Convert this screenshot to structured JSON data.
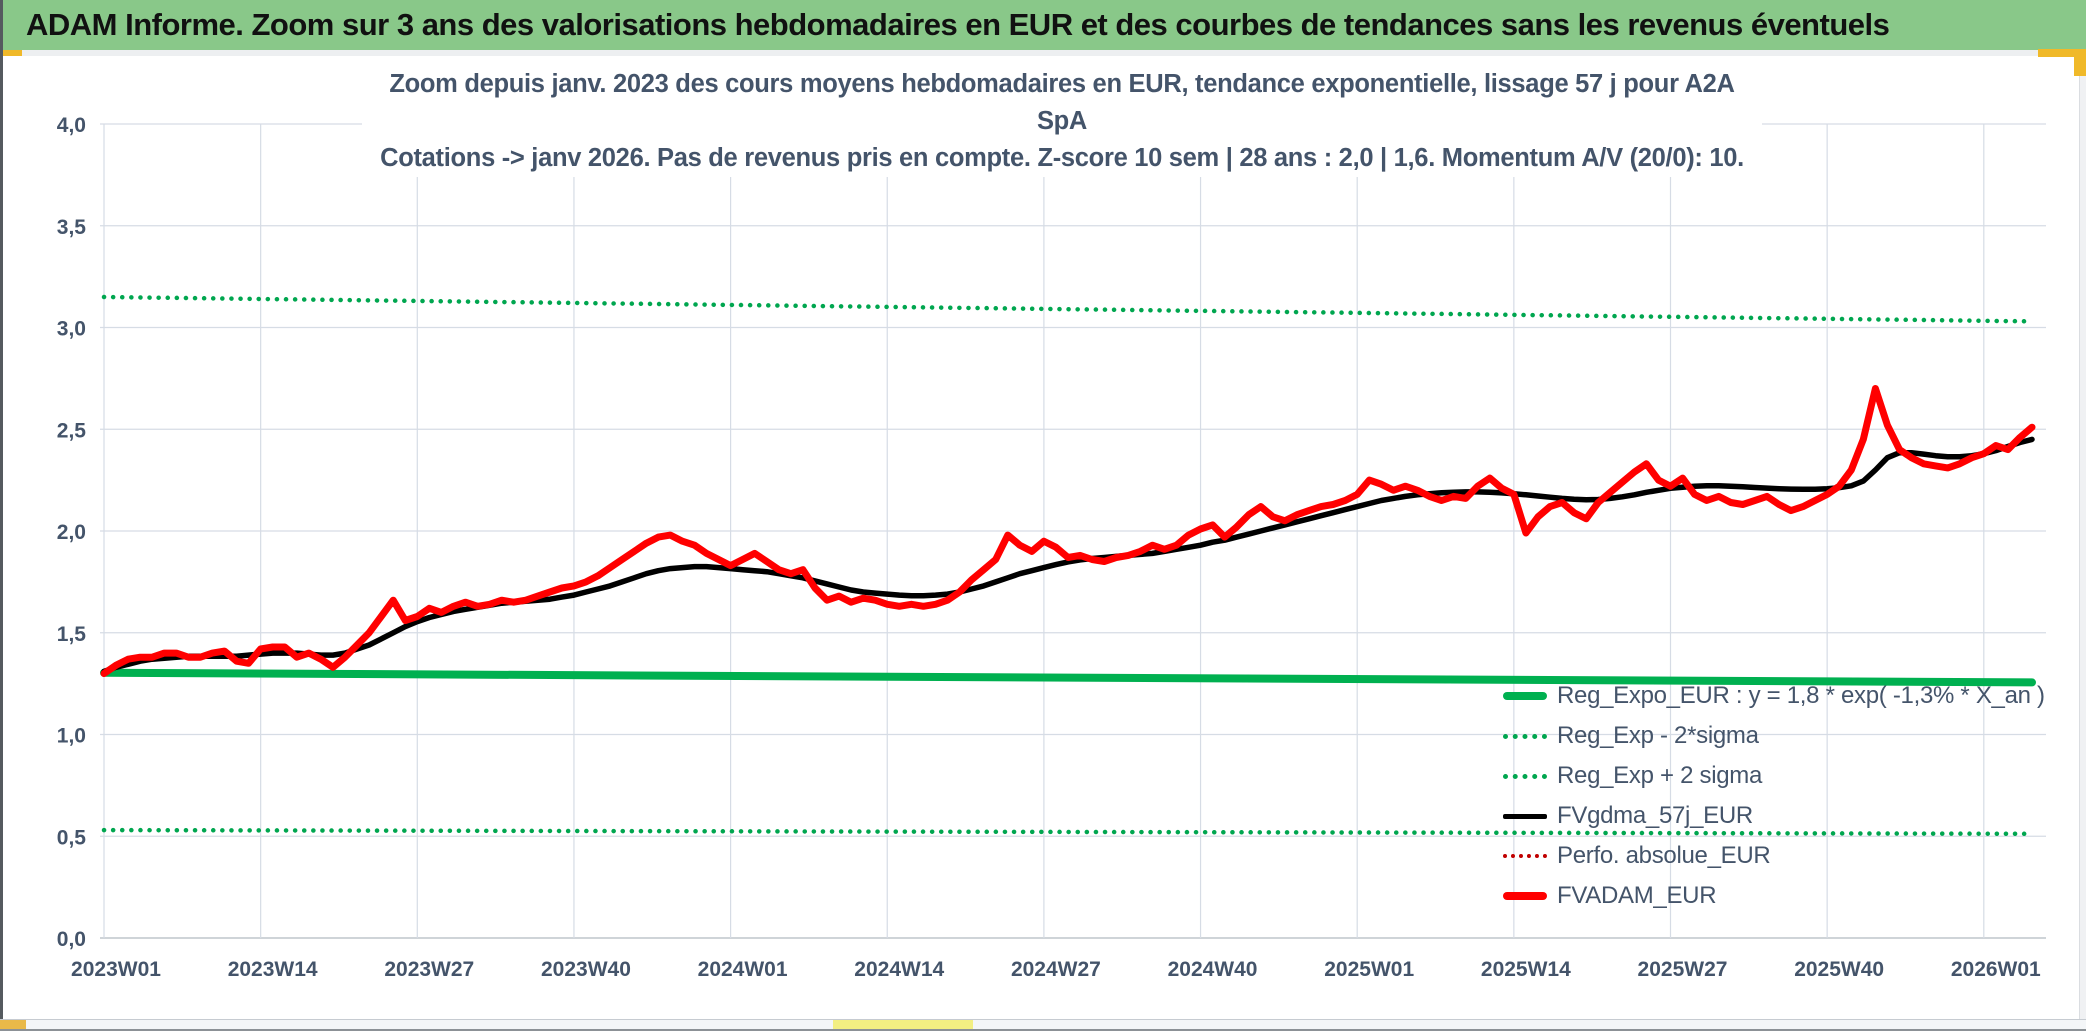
{
  "window": {
    "header_title": "ADAM Informe. Zoom sur 3 ans des valorisations hebdomadaires en EUR et des courbes de tendances sans les revenus éventuels",
    "header_bg": "#89C889",
    "accent_gold": "#F0B929"
  },
  "chart_data": {
    "type": "line",
    "title_line1": "Zoom depuis janv. 2023 des cours moyens hebdomadaires en EUR, tendance exponentielle, lissage 57 j pour A2A SpA",
    "title_line2": "Cotations -> janv 2026. Pas de revenus pris en compte. Z-score 10 sem | 28 ans : 2,0 | 1,6. Momentum A/V (20/0): 10.",
    "legend_position": "inside-right",
    "grid": true,
    "x_axis": {
      "first_week": "2023W01",
      "points": 161,
      "tick_labels": [
        "2023W01",
        "2023W14",
        "2023W27",
        "2023W40",
        "2024W01",
        "2024W14",
        "2024W27",
        "2024W40",
        "2025W01",
        "2025W14",
        "2025W27",
        "2025W40",
        "2026W01"
      ],
      "tick_week_indices": [
        0,
        13,
        26,
        39,
        52,
        65,
        78,
        91,
        104,
        117,
        130,
        143,
        156
      ]
    },
    "y_axis": {
      "min": 0,
      "max": 4,
      "step": 0.5,
      "ticks": [
        [
          "0,0",
          0
        ],
        [
          "0,5",
          0.5
        ],
        [
          "1,0",
          1
        ],
        [
          "1,5",
          1.5
        ],
        [
          "2,0",
          2
        ],
        [
          "2,5",
          2.5
        ],
        [
          "3,0",
          3
        ],
        [
          "3,5",
          3.5
        ],
        [
          "4,0",
          4
        ]
      ]
    },
    "series": [
      {
        "name": "Reg_Expo_EUR : y = 1,8 * exp( -1,3% *  X_an )",
        "color": "#00B050",
        "line_style": "solid",
        "thickness": 8,
        "trend": {
          "start": 1.303,
          "end": 1.256
        }
      },
      {
        "name": "Reg_Exp - 2*sigma",
        "color": "#00A64F",
        "line_style": "dotted",
        "thickness": 4.5,
        "trend": {
          "start": 0.53,
          "end": 0.512
        }
      },
      {
        "name": "Reg_Exp + 2 sigma",
        "color": "#00A64F",
        "line_style": "dotted",
        "thickness": 4.5,
        "trend": {
          "start": 3.15,
          "end": 3.03
        }
      },
      {
        "name": "FVgdma_57j_EUR",
        "color": "#000000",
        "line_style": "solid",
        "thickness": 5.5,
        "values": [
          1.31,
          1.33,
          1.345,
          1.36,
          1.37,
          1.375,
          1.38,
          1.385,
          1.385,
          1.385,
          1.385,
          1.385,
          1.39,
          1.395,
          1.4,
          1.4,
          1.4,
          1.395,
          1.39,
          1.39,
          1.4,
          1.42,
          1.44,
          1.47,
          1.5,
          1.53,
          1.555,
          1.575,
          1.59,
          1.605,
          1.615,
          1.625,
          1.635,
          1.645,
          1.65,
          1.655,
          1.66,
          1.665,
          1.675,
          1.685,
          1.7,
          1.715,
          1.73,
          1.75,
          1.77,
          1.79,
          1.805,
          1.815,
          1.82,
          1.825,
          1.825,
          1.82,
          1.815,
          1.81,
          1.805,
          1.8,
          1.79,
          1.78,
          1.77,
          1.755,
          1.74,
          1.725,
          1.71,
          1.7,
          1.695,
          1.69,
          1.685,
          1.682,
          1.682,
          1.685,
          1.69,
          1.7,
          1.715,
          1.73,
          1.75,
          1.77,
          1.79,
          1.805,
          1.82,
          1.835,
          1.848,
          1.858,
          1.865,
          1.87,
          1.875,
          1.88,
          1.885,
          1.89,
          1.9,
          1.91,
          1.92,
          1.93,
          1.945,
          1.955,
          1.97,
          1.985,
          2.0,
          2.015,
          2.03,
          2.045,
          2.06,
          2.075,
          2.09,
          2.105,
          2.12,
          2.135,
          2.15,
          2.16,
          2.17,
          2.178,
          2.183,
          2.188,
          2.19,
          2.192,
          2.192,
          2.19,
          2.187,
          2.183,
          2.178,
          2.172,
          2.166,
          2.16,
          2.156,
          2.154,
          2.155,
          2.16,
          2.168,
          2.178,
          2.19,
          2.2,
          2.21,
          2.215,
          2.22,
          2.222,
          2.222,
          2.22,
          2.217,
          2.214,
          2.211,
          2.208,
          2.206,
          2.205,
          2.205,
          2.208,
          2.213,
          2.222,
          2.245,
          2.3,
          2.36,
          2.385,
          2.385,
          2.378,
          2.37,
          2.365,
          2.365,
          2.37,
          2.38,
          2.395,
          2.415,
          2.435,
          2.45
        ]
      },
      {
        "name": "Perfo. absolue_EUR",
        "color": "#C00000",
        "line_style": "dotted",
        "thickness": 3,
        "values_same_as": "FVADAM_EUR",
        "note": "coincides with FVADAM_EUR (no revenues counted), hidden behind solid red line"
      },
      {
        "name": "FVADAM_EUR",
        "color": "#FF0000",
        "line_style": "solid",
        "thickness": 7,
        "values": [
          1.3,
          1.34,
          1.37,
          1.38,
          1.38,
          1.4,
          1.4,
          1.38,
          1.38,
          1.4,
          1.41,
          1.36,
          1.35,
          1.42,
          1.43,
          1.43,
          1.38,
          1.4,
          1.37,
          1.33,
          1.38,
          1.44,
          1.5,
          1.58,
          1.66,
          1.56,
          1.58,
          1.62,
          1.6,
          1.63,
          1.65,
          1.63,
          1.64,
          1.66,
          1.65,
          1.66,
          1.68,
          1.7,
          1.72,
          1.73,
          1.75,
          1.78,
          1.82,
          1.86,
          1.9,
          1.94,
          1.97,
          1.98,
          1.95,
          1.93,
          1.89,
          1.86,
          1.83,
          1.86,
          1.89,
          1.85,
          1.81,
          1.79,
          1.81,
          1.72,
          1.66,
          1.68,
          1.65,
          1.67,
          1.66,
          1.64,
          1.63,
          1.64,
          1.63,
          1.64,
          1.66,
          1.7,
          1.76,
          1.81,
          1.86,
          1.98,
          1.93,
          1.9,
          1.95,
          1.92,
          1.87,
          1.88,
          1.86,
          1.85,
          1.87,
          1.88,
          1.9,
          1.93,
          1.91,
          1.93,
          1.98,
          2.01,
          2.03,
          1.97,
          2.02,
          2.08,
          2.12,
          2.07,
          2.05,
          2.08,
          2.1,
          2.12,
          2.13,
          2.15,
          2.18,
          2.25,
          2.23,
          2.2,
          2.22,
          2.2,
          2.17,
          2.15,
          2.17,
          2.16,
          2.22,
          2.26,
          2.21,
          2.18,
          1.99,
          2.07,
          2.12,
          2.14,
          2.09,
          2.06,
          2.14,
          2.19,
          2.24,
          2.29,
          2.33,
          2.25,
          2.22,
          2.26,
          2.18,
          2.15,
          2.17,
          2.14,
          2.13,
          2.15,
          2.17,
          2.13,
          2.1,
          2.12,
          2.15,
          2.18,
          2.22,
          2.3,
          2.45,
          2.7,
          2.52,
          2.4,
          2.36,
          2.33,
          2.32,
          2.31,
          2.33,
          2.36,
          2.38,
          2.42,
          2.4,
          2.46,
          2.51
        ]
      }
    ],
    "colors": {
      "grid": "#D6DCE5",
      "axis_text": "#44546A",
      "axis_line": "#BFC5CC"
    }
  }
}
